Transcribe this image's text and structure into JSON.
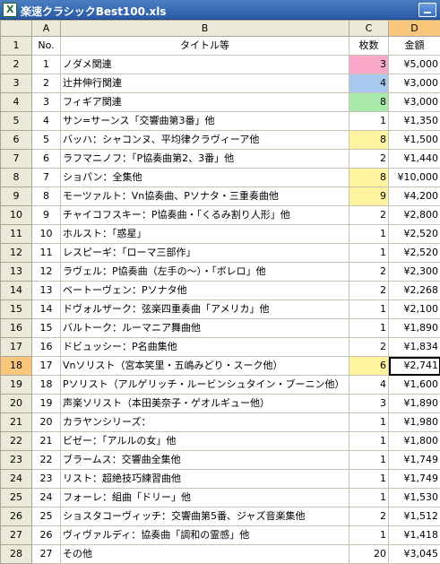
{
  "window": {
    "title": "楽速クラシックBest100.xls",
    "app_icon": "excel-icon"
  },
  "columns": [
    "A",
    "B",
    "C",
    "D"
  ],
  "selected_column": "D",
  "header_row": {
    "no": "No.",
    "title": "タイトル等",
    "count": "枚数",
    "amount": "金額"
  },
  "rows": [
    {
      "row": "2",
      "no": "1",
      "title": "ノダメ関連",
      "count": "3",
      "amount": "¥5,000",
      "color": "#f8a8c8"
    },
    {
      "row": "3",
      "no": "2",
      "title": "辻井伸行関連",
      "count": "4",
      "amount": "¥3,000",
      "color": "#a8c8f0"
    },
    {
      "row": "4",
      "no": "3",
      "title": "フィギア関連",
      "count": "8",
      "amount": "¥3,000",
      "color": "#a8e8a8"
    },
    {
      "row": "5",
      "no": "4",
      "title": "サン=サーンス「交響曲第3番」他",
      "count": "1",
      "amount": "¥1,350",
      "color": ""
    },
    {
      "row": "6",
      "no": "5",
      "title": "バッハ：シャコンヌ、平均律クラヴィーア他",
      "count": "8",
      "amount": "¥1,500",
      "color": "#fff3a0"
    },
    {
      "row": "7",
      "no": "6",
      "title": "ラフマニノフ：「P協奏曲第2、3番」他",
      "count": "2",
      "amount": "¥1,440",
      "color": ""
    },
    {
      "row": "8",
      "no": "7",
      "title": "ショパン：全集他",
      "count": "8",
      "amount": "¥10,000",
      "color": "#fff3a0"
    },
    {
      "row": "9",
      "no": "8",
      "title": "モーツァルト：Vn協奏曲、Pソナタ・三重奏曲他",
      "count": "9",
      "amount": "¥4,200",
      "color": "#fff3a0"
    },
    {
      "row": "10",
      "no": "9",
      "title": "チャイコフスキー：P協奏曲・「くるみ割り人形」他",
      "count": "2",
      "amount": "¥2,800",
      "color": ""
    },
    {
      "row": "11",
      "no": "10",
      "title": "ホルスト：「惑星」",
      "count": "1",
      "amount": "¥2,520",
      "color": ""
    },
    {
      "row": "12",
      "no": "11",
      "title": "レスピーギ：「ローマ三部作」",
      "count": "1",
      "amount": "¥2,520",
      "color": ""
    },
    {
      "row": "13",
      "no": "12",
      "title": "ラヴェル：P協奏曲（左手の〜）・「ボレロ」他",
      "count": "2",
      "amount": "¥2,300",
      "color": ""
    },
    {
      "row": "14",
      "no": "13",
      "title": "ベートーヴェン：Pソナタ他",
      "count": "2",
      "amount": "¥2,268",
      "color": ""
    },
    {
      "row": "15",
      "no": "14",
      "title": "ドヴォルザーク：弦楽四重奏曲「アメリカ」他",
      "count": "1",
      "amount": "¥2,100",
      "color": ""
    },
    {
      "row": "16",
      "no": "15",
      "title": "バルトーク：ルーマニア舞曲他",
      "count": "1",
      "amount": "¥1,890",
      "color": ""
    },
    {
      "row": "17",
      "no": "16",
      "title": "ドビュッシー：P名曲集他",
      "count": "2",
      "amount": "¥1,834",
      "color": ""
    },
    {
      "row": "18",
      "no": "17",
      "title": "Vnソリスト（宮本笑里・五嶋みどり・スーク他）",
      "count": "6",
      "amount": "¥2,741",
      "color": "#fff3a0",
      "selected": true
    },
    {
      "row": "19",
      "no": "18",
      "title": "Pソリスト（アルゲリッチ・ルービンシュタイン・ブーニン他）",
      "count": "4",
      "amount": "¥1,600",
      "color": ""
    },
    {
      "row": "20",
      "no": "19",
      "title": "声楽ソリスト（本田美奈子・ゲオルギュー他）",
      "count": "3",
      "amount": "¥1,890",
      "color": ""
    },
    {
      "row": "21",
      "no": "20",
      "title": "カラヤンシリーズ：",
      "count": "1",
      "amount": "¥1,980",
      "color": ""
    },
    {
      "row": "22",
      "no": "21",
      "title": "ビゼー：「アルルの女」他",
      "count": "1",
      "amount": "¥1,800",
      "color": ""
    },
    {
      "row": "23",
      "no": "22",
      "title": "ブラームス：交響曲全集他",
      "count": "1",
      "amount": "¥1,749",
      "color": ""
    },
    {
      "row": "24",
      "no": "23",
      "title": "リスト：超絶技巧練習曲他",
      "count": "1",
      "amount": "¥1,749",
      "color": ""
    },
    {
      "row": "25",
      "no": "24",
      "title": "フォーレ：組曲「ドリー」他",
      "count": "1",
      "amount": "¥1,530",
      "color": ""
    },
    {
      "row": "26",
      "no": "25",
      "title": "ショスタコーヴィッチ：交響曲第5番、ジャズ音楽集他",
      "count": "2",
      "amount": "¥1,512",
      "color": ""
    },
    {
      "row": "27",
      "no": "26",
      "title": "ヴィヴァルディ：協奏曲「調和の霊感」他",
      "count": "1",
      "amount": "¥1,418",
      "color": ""
    },
    {
      "row": "28",
      "no": "27",
      "title": "その他",
      "count": "20",
      "amount": "¥3,045",
      "color": ""
    }
  ],
  "colors": {
    "selection_header": "#f9c77b",
    "header_bg": "#ece9d8",
    "titlebar": "#2a5aa8"
  }
}
